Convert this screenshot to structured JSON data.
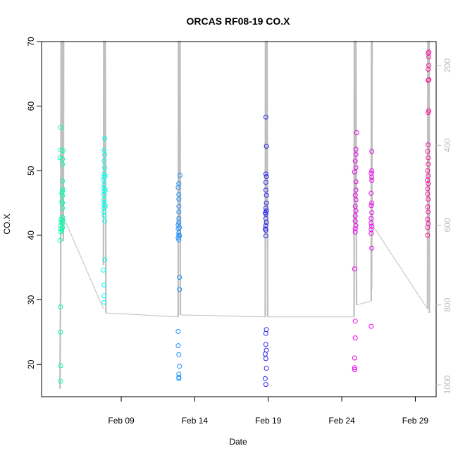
{
  "chart_data": {
    "type": "scatter",
    "title": "ORCAS RF08-19 CO.X",
    "xlabel": "Date",
    "ylabel": "CO.X",
    "ylim": [
      15,
      70
    ],
    "xlim": [
      "2016-02-03T14:00",
      "2016-03-01T10:00"
    ],
    "x_ticks": [
      {
        "label": "Feb 09",
        "date": "2016-02-09"
      },
      {
        "label": "Feb 14",
        "date": "2016-02-14"
      },
      {
        "label": "Feb 19",
        "date": "2016-02-19"
      },
      {
        "label": "Feb 24",
        "date": "2016-02-24"
      },
      {
        "label": "Feb 29",
        "date": "2016-02-29"
      }
    ],
    "y_ticks": [
      20,
      30,
      40,
      50,
      60,
      70
    ],
    "right_axis": {
      "color": "#bdbdbd",
      "range": [
        1030,
        140
      ],
      "ticks": [
        200,
        400,
        600,
        800,
        1000
      ]
    },
    "grid": false,
    "series": [
      {
        "color": "#00ffaa",
        "points": [
          [
            "2016-02-04T21:00",
            17.4
          ],
          [
            "2016-02-04T21:00",
            19.8
          ],
          [
            "2016-02-04T21:00",
            25.0
          ],
          [
            "2016-02-04T21:00",
            28.9
          ],
          [
            "2016-02-04T20:00",
            39.2
          ],
          [
            "2016-02-04T21:00",
            40.5
          ],
          [
            "2016-02-04T21:00",
            41.0
          ],
          [
            "2016-02-04T21:00",
            41.5
          ],
          [
            "2016-02-04T22:00",
            42.0
          ],
          [
            "2016-02-04T22:00",
            42.5
          ],
          [
            "2016-02-04T20:00",
            52.0
          ],
          [
            "2016-02-04T21:00",
            53.2
          ],
          [
            "2016-02-04T21:00",
            56.7
          ],
          [
            "2016-02-05T00:00",
            41.2
          ],
          [
            "2016-02-05T00:00",
            41.8
          ],
          [
            "2016-02-05T00:00",
            42.3
          ],
          [
            "2016-02-05T00:00",
            42.8
          ],
          [
            "2016-02-05T00:00",
            44.2
          ],
          [
            "2016-02-05T00:00",
            45.0
          ],
          [
            "2016-02-05T00:00",
            46.1
          ],
          [
            "2016-02-05T00:00",
            46.8
          ],
          [
            "2016-02-05T00:00",
            47.2
          ],
          [
            "2016-02-05T00:00",
            48.4
          ],
          [
            "2016-02-05T00:00",
            51.0
          ],
          [
            "2016-02-05T00:00",
            51.8
          ],
          [
            "2016-02-05T01:00",
            53.1
          ],
          [
            "2016-02-04T23:00",
            40.8
          ],
          [
            "2016-02-04T23:00",
            45.2
          ],
          [
            "2016-02-04T23:00",
            46.5
          ]
        ]
      },
      {
        "color": "#00ffee",
        "points": [
          [
            "2016-02-07T20:00",
            29.6
          ],
          [
            "2016-02-07T20:00",
            30.6
          ],
          [
            "2016-02-07T20:00",
            32.3
          ],
          [
            "2016-02-07T19:00",
            34.6
          ],
          [
            "2016-02-07T21:00",
            36.2
          ],
          [
            "2016-02-07T21:00",
            42.2
          ],
          [
            "2016-02-07T20:00",
            43.1
          ],
          [
            "2016-02-07T20:00",
            43.6
          ],
          [
            "2016-02-07T20:00",
            44.2
          ],
          [
            "2016-02-07T20:00",
            44.7
          ],
          [
            "2016-02-07T20:00",
            45.1
          ],
          [
            "2016-02-07T20:00",
            45.6
          ],
          [
            "2016-02-07T20:00",
            46.3
          ],
          [
            "2016-02-07T20:00",
            46.8
          ],
          [
            "2016-02-07T20:00",
            47.3
          ],
          [
            "2016-02-07T20:00",
            47.8
          ],
          [
            "2016-02-07T19:00",
            48.6
          ],
          [
            "2016-02-07T20:00",
            49.0
          ],
          [
            "2016-02-07T20:00",
            49.5
          ],
          [
            "2016-02-07T21:00",
            50.5
          ],
          [
            "2016-02-07T20:00",
            51.5
          ],
          [
            "2016-02-07T21:00",
            52.5
          ],
          [
            "2016-02-07T20:00",
            53.2
          ],
          [
            "2016-02-07T21:00",
            55.0
          ],
          [
            "2016-02-07T22:00",
            44.5
          ],
          [
            "2016-02-07T22:00",
            47.0
          ],
          [
            "2016-02-07T22:00",
            49.2
          ]
        ]
      },
      {
        "color": "#1e90ff",
        "points": [
          [
            "2016-02-12T21:00",
            25.1
          ],
          [
            "2016-02-12T21:00",
            22.9
          ],
          [
            "2016-02-12T22:00",
            21.5
          ],
          [
            "2016-02-12T23:00",
            19.7
          ],
          [
            "2016-02-12T22:00",
            18.5
          ],
          [
            "2016-02-12T22:00",
            18.0
          ],
          [
            "2016-02-12T22:00",
            17.8
          ],
          [
            "2016-02-12T23:00",
            31.6
          ],
          [
            "2016-02-12T23:00",
            33.5
          ],
          [
            "2016-02-12T21:00",
            39.6
          ],
          [
            "2016-02-12T22:00",
            39.3
          ],
          [
            "2016-02-12T22:00",
            40.0
          ],
          [
            "2016-02-12T22:00",
            40.4
          ],
          [
            "2016-02-12T21:00",
            41.0
          ],
          [
            "2016-02-12T21:00",
            41.6
          ],
          [
            "2016-02-12T22:00",
            42.0
          ],
          [
            "2016-02-12T22:00",
            42.6
          ],
          [
            "2016-02-12T22:00",
            43.6
          ],
          [
            "2016-02-12T22:00",
            44.5
          ],
          [
            "2016-02-12T22:00",
            45.6
          ],
          [
            "2016-02-12T22:00",
            46.3
          ],
          [
            "2016-02-12T21:00",
            47.4
          ],
          [
            "2016-02-12T22:00",
            48.0
          ],
          [
            "2016-02-13T00:00",
            49.3
          ],
          [
            "2016-02-12T23:00",
            41.2
          ],
          [
            "2016-02-12T23:00",
            39.9
          ]
        ]
      },
      {
        "color": "#2b25f0",
        "points": [
          [
            "2016-02-18T20:00",
            16.9
          ],
          [
            "2016-02-18T19:00",
            17.8
          ],
          [
            "2016-02-18T21:00",
            19.4
          ],
          [
            "2016-02-18T20:00",
            20.9
          ],
          [
            "2016-02-18T19:00",
            21.6
          ],
          [
            "2016-02-18T21:00",
            22.2
          ],
          [
            "2016-02-18T20:00",
            23.1
          ],
          [
            "2016-02-18T20:00",
            24.8
          ],
          [
            "2016-02-18T21:00",
            25.4
          ],
          [
            "2016-02-18T20:00",
            39.9
          ],
          [
            "2016-02-18T20:00",
            40.8
          ],
          [
            "2016-02-18T20:00",
            41.5
          ],
          [
            "2016-02-18T21:00",
            42.0
          ],
          [
            "2016-02-18T20:00",
            42.6
          ],
          [
            "2016-02-18T20:00",
            43.3
          ],
          [
            "2016-02-18T21:00",
            43.8
          ],
          [
            "2016-02-18T20:00",
            44.2
          ],
          [
            "2016-02-18T21:00",
            45.0
          ],
          [
            "2016-02-18T21:00",
            46.2
          ],
          [
            "2016-02-18T20:00",
            47.0
          ],
          [
            "2016-02-18T20:00",
            48.2
          ],
          [
            "2016-02-18T21:00",
            49.1
          ],
          [
            "2016-02-18T20:00",
            49.5
          ],
          [
            "2016-02-18T21:00",
            53.8
          ],
          [
            "2016-02-18T20:00",
            58.3
          ],
          [
            "2016-02-18T19:00",
            41.0
          ],
          [
            "2016-02-18T19:00",
            43.5
          ]
        ]
      },
      {
        "color": "#ee00ee",
        "points": [
          [
            "2016-02-24T21:00",
            19.2
          ],
          [
            "2016-02-24T21:00",
            19.5
          ],
          [
            "2016-02-24T21:00",
            21.0
          ],
          [
            "2016-02-24T22:00",
            24.1
          ],
          [
            "2016-02-24T22:00",
            26.7
          ],
          [
            "2016-02-24T21:00",
            34.8
          ],
          [
            "2016-02-24T22:00",
            40.5
          ],
          [
            "2016-02-24T22:00",
            41.0
          ],
          [
            "2016-02-24T23:00",
            41.5
          ],
          [
            "2016-02-24T22:00",
            42.2
          ],
          [
            "2016-02-24T22:00",
            43.0
          ],
          [
            "2016-02-24T23:00",
            43.8
          ],
          [
            "2016-02-24T22:00",
            44.5
          ],
          [
            "2016-02-24T23:00",
            45.5
          ],
          [
            "2016-02-24T22:00",
            46.2
          ],
          [
            "2016-02-24T23:00",
            47.0
          ],
          [
            "2016-02-24T23:00",
            48.3
          ],
          [
            "2016-02-24T21:00",
            49.8
          ],
          [
            "2016-02-24T23:00",
            50.5
          ],
          [
            "2016-02-24T22:00",
            51.5
          ],
          [
            "2016-02-24T23:00",
            52.5
          ],
          [
            "2016-02-24T23:00",
            53.3
          ],
          [
            "2016-02-25T00:00",
            55.9
          ],
          [
            "2016-02-26T00:00",
            25.9
          ],
          [
            "2016-02-26T01:00",
            38.0
          ],
          [
            "2016-02-26T00:00",
            40.3
          ],
          [
            "2016-02-26T00:00",
            40.9
          ],
          [
            "2016-02-26T01:00",
            41.4
          ],
          [
            "2016-02-26T00:00",
            41.9
          ],
          [
            "2016-02-26T00:00",
            42.6
          ],
          [
            "2016-02-26T01:00",
            43.5
          ],
          [
            "2016-02-26T00:00",
            44.6
          ],
          [
            "2016-02-26T01:00",
            45.0
          ],
          [
            "2016-02-26T00:00",
            46.5
          ],
          [
            "2016-02-26T01:00",
            48.5
          ],
          [
            "2016-02-26T01:00",
            49.0
          ],
          [
            "2016-02-26T00:00",
            49.6
          ],
          [
            "2016-02-26T01:00",
            50.0
          ],
          [
            "2016-02-26T01:00",
            53.0
          ]
        ]
      },
      {
        "color": "#ff10a0",
        "points": [
          [
            "2016-02-29T20:00",
            40.0
          ],
          [
            "2016-02-29T20:00",
            41.2
          ],
          [
            "2016-02-29T21:00",
            41.8
          ],
          [
            "2016-02-29T20:00",
            42.5
          ],
          [
            "2016-02-29T21:00",
            43.6
          ],
          [
            "2016-02-29T20:00",
            44.4
          ],
          [
            "2016-02-29T21:00",
            45.6
          ],
          [
            "2016-02-29T20:00",
            46.4
          ],
          [
            "2016-02-29T20:00",
            47.2
          ],
          [
            "2016-02-29T21:00",
            48.0
          ],
          [
            "2016-02-29T20:00",
            48.5
          ],
          [
            "2016-02-29T21:00",
            49.2
          ],
          [
            "2016-02-29T20:00",
            50.0
          ],
          [
            "2016-02-29T21:00",
            51.0
          ],
          [
            "2016-02-29T21:00",
            52.0
          ],
          [
            "2016-02-29T20:00",
            53.0
          ],
          [
            "2016-02-29T21:00",
            54.0
          ],
          [
            "2016-02-29T21:00",
            59.0
          ],
          [
            "2016-02-29T22:00",
            59.3
          ],
          [
            "2016-02-29T21:00",
            64.0
          ],
          [
            "2016-02-29T22:00",
            64.1
          ],
          [
            "2016-02-29T21:00",
            65.7
          ],
          [
            "2016-02-29T22:00",
            66.3
          ],
          [
            "2016-02-29T22:00",
            67.6
          ],
          [
            "2016-02-29T21:00",
            68.2
          ],
          [
            "2016-02-29T22:00",
            68.4
          ]
        ]
      }
    ],
    "altitude_trace": {
      "color": "#bfbfbf",
      "unit_axis": "right",
      "flights": [
        {
          "points": [
            [
              "2016-02-04T20:00",
              1010
            ],
            [
              "2016-02-04T21:00",
              760
            ],
            [
              "2016-02-04T22:00",
              140
            ],
            [
              "2016-02-04T22:30",
              600
            ],
            [
              "2016-02-04T23:00",
              140
            ],
            [
              "2016-02-05T00:00",
              140
            ],
            [
              "2016-02-05T00:30",
              620
            ],
            [
              "2016-02-05T00:45",
              140
            ],
            [
              "2016-02-05T01:00",
              140
            ],
            [
              "2016-02-05T01:30",
              640
            ],
            [
              "2016-02-05T02:00",
              140
            ]
          ]
        },
        {
          "points": [
            [
              "2016-02-07T19:00",
              700
            ],
            [
              "2016-02-07T19:30",
              140
            ],
            [
              "2016-02-07T20:00",
              140
            ],
            [
              "2016-02-07T20:30",
              560
            ],
            [
              "2016-02-07T21:00",
              140
            ],
            [
              "2016-02-07T22:00",
              140
            ],
            [
              "2016-02-07T23:00",
              820
            ]
          ]
        },
        {
          "points": [
            [
              "2016-02-12T21:00",
              830
            ],
            [
              "2016-02-12T21:30",
              140
            ],
            [
              "2016-02-12T22:00",
              140
            ],
            [
              "2016-02-12T22:30",
              600
            ],
            [
              "2016-02-12T23:00",
              140
            ],
            [
              "2016-02-13T00:00",
              140
            ],
            [
              "2016-02-13T00:30",
              825
            ]
          ]
        },
        {
          "points": [
            [
              "2016-02-18T19:00",
              830
            ],
            [
              "2016-02-18T19:30",
              140
            ],
            [
              "2016-02-18T20:00",
              140
            ],
            [
              "2016-02-18T20:30",
              600
            ],
            [
              "2016-02-18T21:00",
              140
            ],
            [
              "2016-02-18T22:00",
              140
            ],
            [
              "2016-02-18T23:00",
              830
            ]
          ]
        },
        {
          "points": [
            [
              "2016-02-24T20:00",
              830
            ],
            [
              "2016-02-24T20:30",
              140
            ],
            [
              "2016-02-24T21:00",
              140
            ],
            [
              "2016-02-24T21:30",
              600
            ],
            [
              "2016-02-24T22:00",
              140
            ],
            [
              "2016-02-24T23:00",
              140
            ],
            [
              "2016-02-25T00:00",
              800
            ]
          ]
        },
        {
          "points": [
            [
              "2016-02-26T00:00",
              790
            ],
            [
              "2016-02-26T00:20",
              140
            ],
            [
              "2016-02-26T00:40",
              760
            ],
            [
              "2016-02-26T01:00",
              570
            ],
            [
              "2016-02-26T01:30",
              140
            ],
            [
              "2016-02-26T02:00",
              140
            ]
          ]
        },
        {
          "points": [
            [
              "2016-02-29T20:00",
              810
            ],
            [
              "2016-02-29T20:30",
              140
            ],
            [
              "2016-02-29T21:00",
              140
            ],
            [
              "2016-02-29T21:30",
              560
            ],
            [
              "2016-02-29T22:00",
              140
            ],
            [
              "2016-02-29T22:30",
              140
            ],
            [
              "2016-02-29T23:00",
              820
            ]
          ]
        }
      ],
      "connectors": [
        [
          [
            "2016-02-05T02:00",
            580
          ],
          [
            "2016-02-07T19:00",
            810
          ]
        ],
        [
          [
            "2016-02-07T23:00",
            820
          ],
          [
            "2016-02-12T21:00",
            830
          ]
        ],
        [
          [
            "2016-02-13T00:30",
            825
          ],
          [
            "2016-02-18T19:00",
            830
          ]
        ],
        [
          [
            "2016-02-18T23:00",
            830
          ],
          [
            "2016-02-24T20:00",
            830
          ]
        ],
        [
          [
            "2016-02-25T00:00",
            800
          ],
          [
            "2016-02-26T00:00",
            790
          ]
        ],
        [
          [
            "2016-02-26T02:00",
            600
          ],
          [
            "2016-02-29T20:00",
            810
          ]
        ]
      ]
    }
  }
}
